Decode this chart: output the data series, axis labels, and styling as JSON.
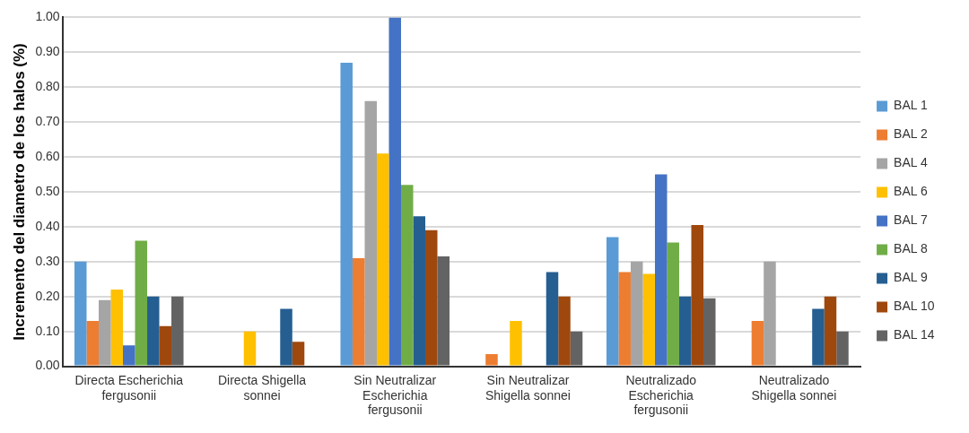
{
  "chart_data": {
    "type": "bar",
    "ylabel": "Incremento del diametro de los halos (%)",
    "categories": [
      "Directa Escherichia fergusonii",
      "Directa Shigella sonnei",
      "Sin Neutralizar Escherichia fergusonii",
      "Sin Neutralizar Shigella sonnei",
      "Neutralizado Escherichia fergusonii",
      "Neutralizado Shigella sonnei"
    ],
    "series": [
      {
        "name": "BAL 1",
        "color": "#5b9bd5",
        "values": [
          0.3,
          0,
          0.87,
          0,
          0.37,
          0
        ]
      },
      {
        "name": "BAL 2",
        "color": "#ed7d31",
        "values": [
          0.13,
          0,
          0.31,
          0.035,
          0.27,
          0.13
        ]
      },
      {
        "name": "BAL 4",
        "color": "#a5a5a5",
        "values": [
          0.19,
          0,
          0.76,
          0,
          0.3,
          0.3
        ]
      },
      {
        "name": "BAL 6",
        "color": "#ffc000",
        "values": [
          0.22,
          0.1,
          0.61,
          0.13,
          0.265,
          0
        ]
      },
      {
        "name": "BAL 7",
        "color": "#4472c4",
        "values": [
          0.06,
          0,
          1.0,
          0,
          0.55,
          0
        ]
      },
      {
        "name": "BAL 8",
        "color": "#70ad47",
        "values": [
          0.36,
          0,
          0.52,
          0,
          0.355,
          0
        ]
      },
      {
        "name": "BAL 9",
        "color": "#255e91",
        "values": [
          0.2,
          0.165,
          0.43,
          0.27,
          0.2,
          0.165
        ]
      },
      {
        "name": "BAL 10",
        "color": "#9e480e",
        "values": [
          0.115,
          0.07,
          0.39,
          0.2,
          0.405,
          0.2
        ]
      },
      {
        "name": "BAL 14",
        "color": "#636363",
        "values": [
          0.2,
          0,
          0.315,
          0.1,
          0.195,
          0.1
        ]
      }
    ],
    "ylim": [
      0,
      1
    ],
    "yticks": [
      {
        "value": 0,
        "label": "0.00"
      },
      {
        "value": 0.1,
        "label": "0.10"
      },
      {
        "value": 0.2,
        "label": "0.20"
      },
      {
        "value": 0.3,
        "label": "0.30"
      },
      {
        "value": 0.4,
        "label": "0.40"
      },
      {
        "value": 0.5,
        "label": "0.50"
      },
      {
        "value": 0.6,
        "label": "0.60"
      },
      {
        "value": 0.7,
        "label": "0.70"
      },
      {
        "value": 0.8,
        "label": "0.80"
      },
      {
        "value": 0.9,
        "label": "0.90"
      },
      {
        "value": 1,
        "label": "1.00"
      }
    ],
    "grid": "y",
    "legend": "right"
  }
}
